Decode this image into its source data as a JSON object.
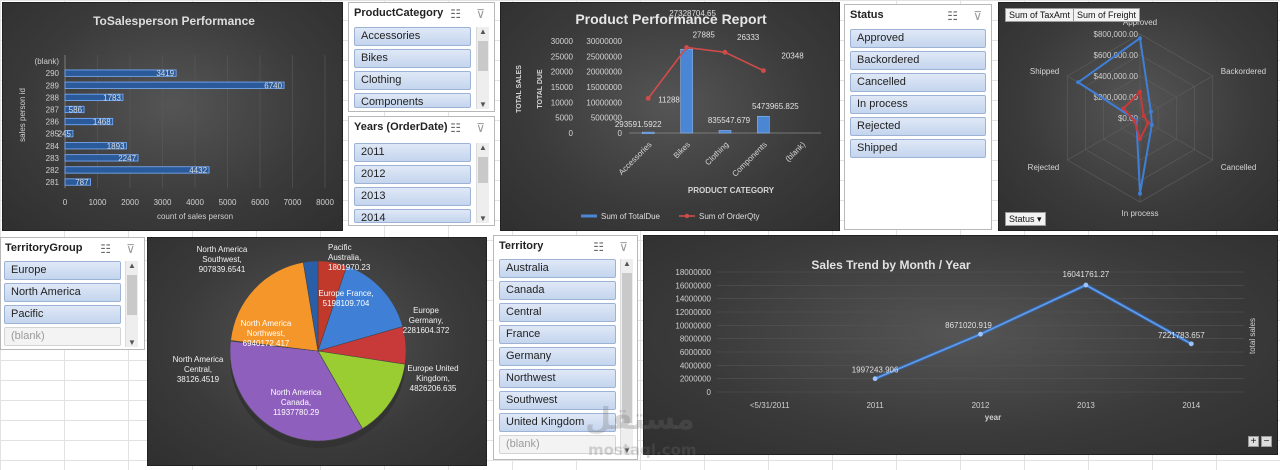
{
  "charts": {
    "salesperson": {
      "chart_data": {
        "type": "bar",
        "orientation": "horizontal",
        "title": "ToSalesperson Performance",
        "xlabel": "count of sales person",
        "ylabel": "sales person id",
        "categories": [
          "(blank)",
          "290",
          "289",
          "288",
          "287",
          "286",
          "285",
          "284",
          "283",
          "282",
          "281"
        ],
        "values": [
          null,
          3419,
          6740,
          1783,
          586,
          1468,
          245,
          1893,
          2247,
          4432,
          787
        ],
        "xlim": [
          0,
          8000
        ],
        "xticks": [
          "0",
          "1000",
          "2000",
          "3000",
          "4000",
          "5000",
          "6000",
          "7000",
          "8000"
        ]
      }
    },
    "product": {
      "chart_data": {
        "type": "bar",
        "title": "Product Performance Report",
        "xlabel": "PRODUCT CATEGORY",
        "ylabel_left": "TOTAL SALES",
        "ylabel_right": "TOTAL DUE",
        "categories": [
          "Accessories",
          "Bikes",
          "Clothing",
          "Components",
          "(blank)"
        ],
        "series": [
          {
            "name": "Sum of TotalDue",
            "type": "bar",
            "values": [
              293591.5922,
              27328704.65,
              835547.679,
              5473965.825,
              null
            ],
            "labels": [
              "293591.5922",
              "27328704.65",
              "835547.679",
              "5473965.825",
              ""
            ]
          },
          {
            "name": "Sum of OrderQty",
            "type": "line",
            "values": [
              11288,
              27885,
              26333,
              20348,
              null
            ],
            "labels": [
              "11288",
              "27885",
              "26333",
              "20348",
              ""
            ]
          }
        ],
        "ylim_qty": [
          0,
          30000
        ],
        "ylim_due": [
          0,
          30000000
        ],
        "yticks_qty": [
          "0",
          "5000",
          "10000",
          "15000",
          "20000",
          "25000",
          "30000"
        ],
        "yticks_due": [
          "0",
          "5000000",
          "10000000",
          "15000000",
          "20000000",
          "25000000",
          "30000000"
        ],
        "colors": {
          "bar": "#4a86d4",
          "line": "#d24b4b"
        }
      }
    },
    "status_radar": {
      "chart_data": {
        "type": "radar",
        "categories": [
          "Approved",
          "Backordered",
          "Cancelled",
          "In process",
          "Rejected",
          "Shipped"
        ],
        "series": [
          {
            "name": "Sum of TaxAmt",
            "values": [
              760000,
              120000,
              130000,
              720000,
              40000,
              680000
            ]
          },
          {
            "name": "Sum of Freight",
            "values": [
              250000,
              40000,
              90000,
              200000,
              60000,
              180000
            ]
          }
        ],
        "rlim": [
          0,
          800000
        ],
        "rticks": [
          "$0.00",
          "$200,000.00",
          "$400,000.00",
          "$600,000.00",
          "$800,000.00"
        ],
        "colors": {
          "tax": "#3f7fd6",
          "freight": "#c83a3a"
        }
      },
      "field_buttons": [
        "Sum of TaxAmt",
        "Sum of Freight"
      ],
      "filter_button": "Status"
    },
    "territory_pie": {
      "chart_data": {
        "type": "pie",
        "series_labels": [
          [
            "Pacific",
            "Australia,",
            "1801970.23"
          ],
          [
            "Europe France,",
            "5198109.704"
          ],
          [
            "Europe",
            "Germany,",
            "2281604.372"
          ],
          [
            "Europe United",
            "Kingdom,",
            "4826206.635"
          ],
          [
            "North America",
            "Canada,",
            "11937780.29"
          ],
          [
            "North America",
            "Central,",
            "38126.4519"
          ],
          [
            "North America",
            "Northwest,",
            "6940172.417"
          ],
          [
            "North America",
            "Southwest,",
            "907839.6541"
          ]
        ],
        "values": [
          1801970.23,
          5198109.704,
          2281604.372,
          4826206.635,
          11937780.29,
          38126.4519,
          6940172.417,
          907839.6541
        ],
        "colors": [
          "#c0392b",
          "#3f7fd6",
          "#c83a3a",
          "#9acd32",
          "#8e5fbd",
          "#2e8b8b",
          "#f5962a",
          "#2a5fa8"
        ]
      }
    },
    "sales_trend": {
      "chart_data": {
        "type": "line",
        "title": "Sales Trend by Month / Year",
        "xlabel": "year",
        "ylabel": "total sales",
        "categories": [
          "<5/31/2011",
          "2011",
          "2012",
          "2013",
          "2014"
        ],
        "values": [
          null,
          1997243.906,
          8671020.919,
          16041761.27,
          7221783.657
        ],
        "labels": [
          "",
          "1997243.906",
          "8671020.919",
          "16041761.27",
          "7221783.657"
        ],
        "ylim": [
          0,
          18000000
        ],
        "yticks": [
          "0",
          "2000000",
          "4000000",
          "6000000",
          "8000000",
          "10000000",
          "12000000",
          "14000000",
          "16000000",
          "18000000"
        ],
        "color": "#5b9bef"
      },
      "zoom_plus": "+",
      "zoom_minus": "−"
    }
  },
  "slicers": {
    "product_category": {
      "title": "ProductCategory",
      "items": [
        "Accessories",
        "Bikes",
        "Clothing",
        "Components"
      ]
    },
    "years": {
      "title": "Years (OrderDate)",
      "items": [
        "2011",
        "2012",
        "2013",
        "2014"
      ]
    },
    "status": {
      "title": "Status",
      "items": [
        "Approved",
        "Backordered",
        "Cancelled",
        "In process",
        "Rejected",
        "Shipped"
      ]
    },
    "territory_group": {
      "title": "TerritoryGroup",
      "items": [
        "Europe",
        "North America",
        "Pacific",
        "(blank)"
      ]
    },
    "territory": {
      "title": "Territory",
      "items": [
        "Australia",
        "Canada",
        "Central",
        "France",
        "Germany",
        "Northwest",
        "Southwest",
        "United Kingdom",
        "(blank)"
      ]
    }
  },
  "icons": {
    "multiselect": "☷",
    "clear_filter": "⊽",
    "scroll_up": "▲",
    "scroll_down": "▼",
    "dropdown": "▾"
  },
  "watermark": {
    "logo": "مستقل",
    "site": "mostaql.com"
  }
}
